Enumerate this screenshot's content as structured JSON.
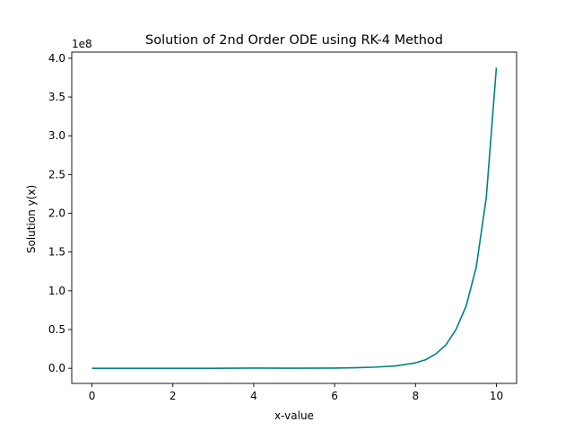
{
  "chart_data": {
    "type": "line",
    "title": "Solution of 2nd Order ODE using RK-4 Method",
    "xlabel": "x-value",
    "ylabel": "Solution y(x)",
    "y_offset_label": "1e8",
    "xlim": [
      -0.5,
      10.5
    ],
    "ylim": [
      -0.195,
      4.08
    ],
    "x_ticks": [
      0,
      2,
      4,
      6,
      8,
      10
    ],
    "x_tick_labels": [
      "0",
      "2",
      "4",
      "6",
      "8",
      "10"
    ],
    "y_ticks": [
      0.0,
      0.5,
      1.0,
      1.5,
      2.0,
      2.5,
      3.0,
      3.5,
      4.0
    ],
    "y_tick_labels": [
      "0.0",
      "0.5",
      "1.0",
      "1.5",
      "2.0",
      "2.5",
      "3.0",
      "3.5",
      "4.0"
    ],
    "y_unit_scale": 100000000,
    "grid": false,
    "series": [
      {
        "color": "#008080",
        "x": [
          0,
          1,
          2,
          3,
          4,
          5,
          6,
          6.5,
          7,
          7.5,
          8,
          8.25,
          8.5,
          8.75,
          9,
          9.25,
          9.5,
          9.75,
          10
        ],
        "y": [
          0,
          3e-06,
          4e-05,
          0.0003,
          0.0022,
          0.0017,
          0.0028,
          0.0075,
          0.015,
          0.03,
          0.07,
          0.11,
          0.185,
          0.3,
          0.5,
          0.8,
          1.3,
          2.2,
          3.88
        ]
      }
    ]
  }
}
